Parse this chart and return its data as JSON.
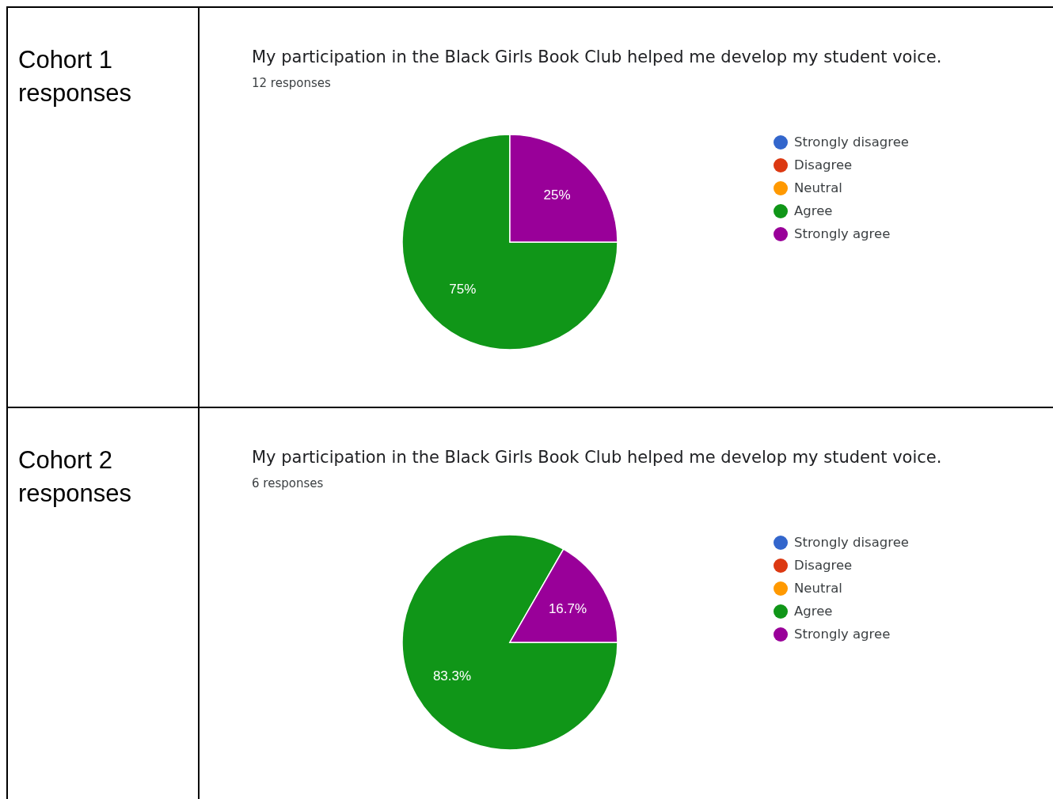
{
  "chart_data": [
    {
      "type": "pie",
      "title": "My participation in the Black Girls Book Club helped me develop my student voice.",
      "subtitle": "12 responses",
      "annotations": [
        "Cohort 1 responses"
      ],
      "categories": [
        "Strongly disagree",
        "Disagree",
        "Neutral",
        "Agree",
        "Strongly agree"
      ],
      "values": [
        0,
        0,
        0,
        75,
        25
      ],
      "colors": [
        "#3366cc",
        "#dc3912",
        "#ff9900",
        "#109618",
        "#990099"
      ],
      "value_labels": [
        null,
        null,
        null,
        "75%",
        "25%"
      ],
      "legend": "right"
    },
    {
      "type": "pie",
      "title": "My participation in the Black Girls Book Club helped me develop my student voice.",
      "subtitle": "6 responses",
      "annotations": [
        "Cohort 2 responses"
      ],
      "categories": [
        "Strongly disagree",
        "Disagree",
        "Neutral",
        "Agree",
        "Strongly agree"
      ],
      "values": [
        0,
        0,
        0,
        83.3,
        16.7
      ],
      "colors": [
        "#3366cc",
        "#dc3912",
        "#ff9900",
        "#109618",
        "#990099"
      ],
      "value_labels": [
        null,
        null,
        null,
        "83.3%",
        "16.7%"
      ],
      "legend": "right"
    }
  ]
}
